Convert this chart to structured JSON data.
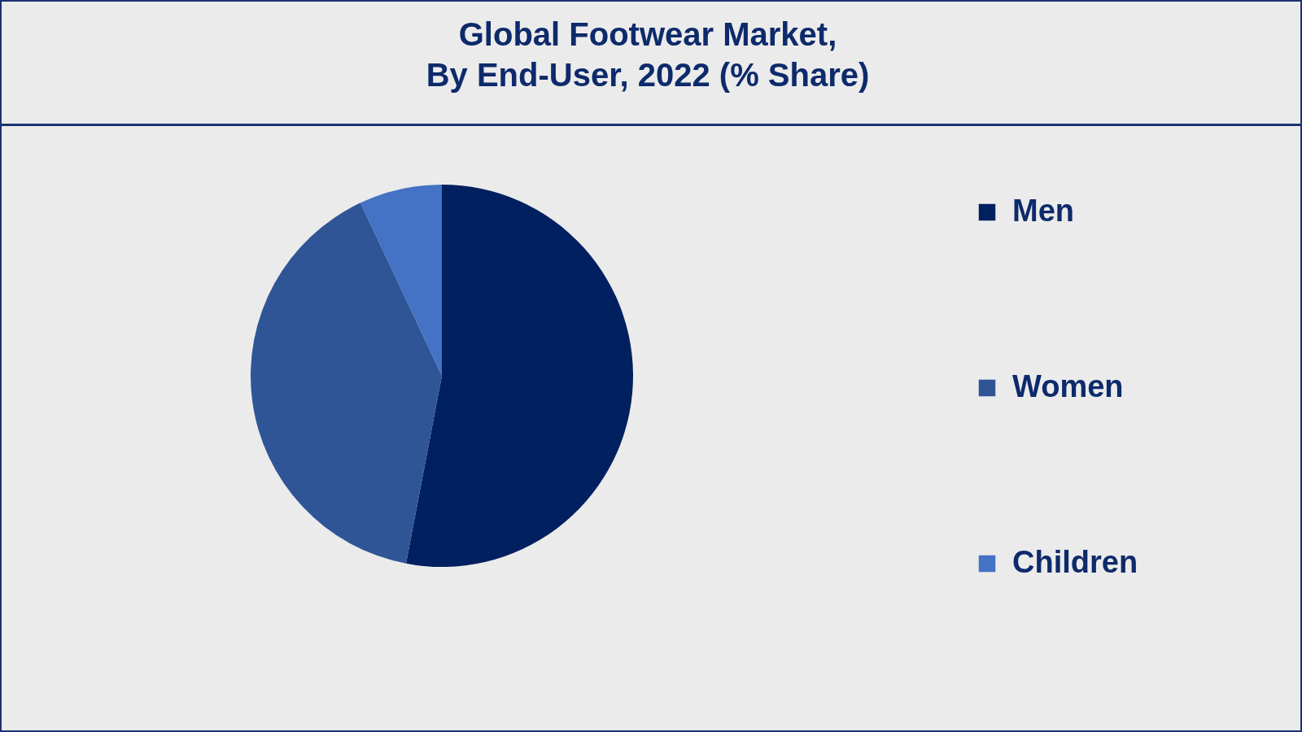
{
  "chart_data": {
    "type": "pie",
    "title": "Global Footwear Market,\nBy End-User, 2022 (% Share)",
    "categories": [
      "Men",
      "Women",
      "Children"
    ],
    "values": [
      53,
      40,
      7
    ],
    "colors": [
      "#002060",
      "#2f5597",
      "#4472c4"
    ],
    "legend": "right"
  }
}
